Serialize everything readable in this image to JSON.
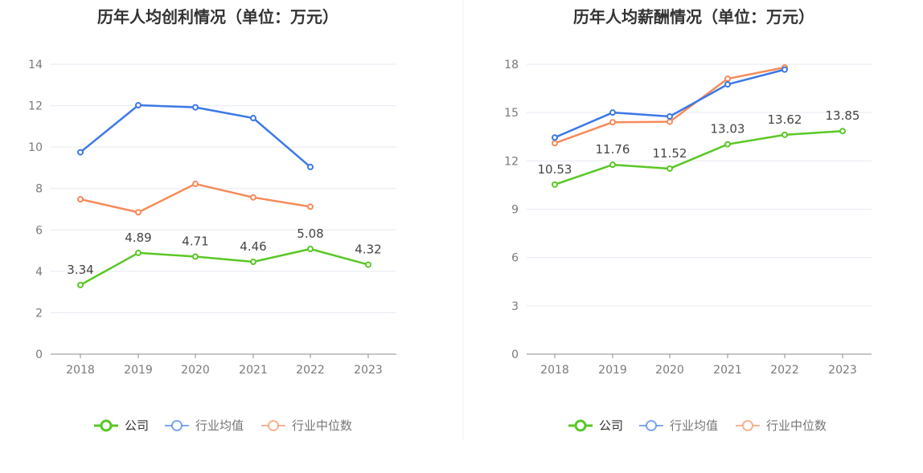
{
  "chart_data": [
    {
      "type": "line",
      "title": "历年人均创利情况（单位：万元）",
      "categories": [
        "2018",
        "2019",
        "2020",
        "2021",
        "2022",
        "2023"
      ],
      "ylim": [
        0,
        14
      ],
      "yticks": [
        0,
        2,
        4,
        6,
        8,
        10,
        12,
        14
      ],
      "grid": true,
      "legend_position": "bottom",
      "series": [
        {
          "name": "公司",
          "color": "#5ac726",
          "values": [
            3.34,
            4.89,
            4.71,
            4.46,
            5.08,
            4.32
          ],
          "labels": [
            "3.34",
            "4.89",
            "4.71",
            "4.46",
            "5.08",
            "4.32"
          ]
        },
        {
          "name": "行业均值",
          "color": "#3b78e7",
          "values": [
            9.75,
            12.02,
            11.92,
            11.4,
            9.04,
            null
          ]
        },
        {
          "name": "行业中位数",
          "color": "#f58a5a",
          "values": [
            7.48,
            6.85,
            8.22,
            7.57,
            7.12,
            null
          ]
        }
      ]
    },
    {
      "type": "line",
      "title": "历年人均薪酬情况（单位：万元）",
      "categories": [
        "2018",
        "2019",
        "2020",
        "2021",
        "2022",
        "2023"
      ],
      "ylim": [
        0,
        18
      ],
      "yticks": [
        0,
        3,
        6,
        9,
        12,
        15,
        18
      ],
      "grid": true,
      "legend_position": "bottom",
      "series": [
        {
          "name": "公司",
          "color": "#5ac726",
          "values": [
            10.53,
            11.76,
            11.52,
            13.03,
            13.62,
            13.85
          ],
          "labels": [
            "10.53",
            "11.76",
            "11.52",
            "13.03",
            "13.62",
            "13.85"
          ]
        },
        {
          "name": "行业均值",
          "color": "#3b78e7",
          "values": [
            13.45,
            15.0,
            14.76,
            16.75,
            17.67,
            null
          ]
        },
        {
          "name": "行业中位数",
          "color": "#f58a5a",
          "values": [
            13.1,
            14.4,
            14.43,
            17.1,
            17.8,
            null
          ]
        }
      ]
    }
  ]
}
